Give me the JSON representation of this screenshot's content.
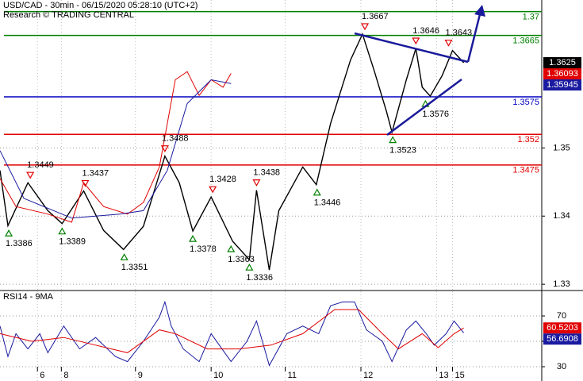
{
  "chart_data": [
    {
      "type": "line",
      "title": "USD/CAD - 30min - 06/15/2020 05:28:10 (UTC+2)",
      "subtitle": "Research © TRADING CENTRAL",
      "xlim": [
        0,
        340
      ],
      "ylim": [
        1.3292,
        1.3717
      ],
      "xticks": [
        {
          "value": 23.5,
          "label": "6"
        },
        {
          "value": 38.5,
          "label": "8"
        },
        {
          "value": 85,
          "label": "9"
        },
        {
          "value": 132.5,
          "label": "10"
        },
        {
          "value": 179,
          "label": "11"
        },
        {
          "value": 226.5,
          "label": "12"
        },
        {
          "value": 274,
          "label": "13"
        },
        {
          "value": 284,
          "label": "15"
        }
      ],
      "yticks": [
        1.33,
        1.34,
        1.35
      ],
      "grid": true,
      "series": [
        {
          "color": "#000000",
          "x": [
            0,
            5,
            17.5,
            30,
            39,
            52.5,
            65,
            77.5,
            90,
            103.5,
            112.5,
            121,
            132.5,
            146,
            156.5,
            161,
            169,
            175,
            190,
            198.5,
            207.5,
            220,
            227.5,
            235,
            242.5,
            246,
            255,
            261,
            265,
            270,
            277.5,
            284,
            291
          ],
          "values": [
            1.3467,
            1.3386,
            1.3449,
            1.3408,
            1.3389,
            1.3437,
            1.3379,
            1.3351,
            1.3385,
            1.3488,
            1.3449,
            1.3378,
            1.3428,
            1.3363,
            1.3336,
            1.3438,
            1.3321,
            1.3408,
            1.3472,
            1.3446,
            1.3536,
            1.3629,
            1.3667,
            1.3612,
            1.3554,
            1.3523,
            1.36,
            1.3646,
            1.3589,
            1.3576,
            1.3606,
            1.3643,
            1.3625
          ]
        },
        {
          "color": "#e00000",
          "x": [
            0,
            10,
            30,
            45,
            52.5,
            65,
            80,
            90,
            100,
            110,
            117.5,
            125,
            132.5,
            140,
            145
          ],
          "values": [
            1.3455,
            1.3414,
            1.3403,
            1.3391,
            1.3449,
            1.3414,
            1.3403,
            1.342,
            1.3472,
            1.36,
            1.3612,
            1.3577,
            1.36,
            1.3589,
            1.36093
          ]
        },
        {
          "color": "#1a1aa0",
          "x": [
            0,
            15,
            45,
            75,
            90,
            105,
            117.5,
            132.5,
            145
          ],
          "values": [
            1.3496,
            1.3426,
            1.3397,
            1.3403,
            1.3408,
            1.3467,
            1.3565,
            1.36,
            1.35945
          ]
        }
      ],
      "levels": [
        {
          "value": 1.37,
          "color": "#008000"
        },
        {
          "value": 1.3665,
          "color": "#008000"
        },
        {
          "value": 1.3575,
          "color": "#0000c0"
        },
        {
          "value": 1.352,
          "color": "#e00000"
        },
        {
          "value": 1.3475,
          "color": "#e00000"
        }
      ],
      "annotations": [
        {
          "x": 19,
          "value": 1.3449,
          "kind": "high"
        },
        {
          "x": 53.5,
          "value": 1.3437,
          "kind": "high"
        },
        {
          "x": 103.5,
          "value": 1.3488,
          "kind": "high"
        },
        {
          "x": 133.5,
          "value": 1.3428,
          "kind": "high"
        },
        {
          "x": 161,
          "value": 1.3438,
          "kind": "high"
        },
        {
          "x": 229,
          "value": 1.3667,
          "kind": "high"
        },
        {
          "x": 261,
          "value": 1.3646,
          "kind": "high"
        },
        {
          "x": 281.5,
          "value": 1.3643,
          "kind": "high"
        },
        {
          "x": 5.5,
          "value": 1.3386,
          "kind": "low"
        },
        {
          "x": 39,
          "value": 1.3389,
          "kind": "low"
        },
        {
          "x": 78,
          "value": 1.3351,
          "kind": "low"
        },
        {
          "x": 121,
          "value": 1.3378,
          "kind": "low"
        },
        {
          "x": 145,
          "value": 1.3363,
          "kind": "low"
        },
        {
          "x": 156.5,
          "value": 1.3336,
          "kind": "low"
        },
        {
          "x": 199,
          "value": 1.3446,
          "kind": "low"
        },
        {
          "x": 246.5,
          "value": 1.3523,
          "kind": "low"
        },
        {
          "x": 267,
          "value": 1.3576,
          "kind": "low"
        }
      ],
      "last_values": [
        {
          "value": 1.3625,
          "color": "#000000"
        },
        {
          "value": 1.36093,
          "color": "#e00000"
        },
        {
          "value": 1.35945,
          "color": "#1a1aa0"
        }
      ]
    },
    {
      "type": "line",
      "title": "RSI14 - 9MA",
      "xlim": [
        0,
        340
      ],
      "ylim": [
        18.75,
        89.4
      ],
      "yticks": [
        30,
        50,
        70
      ],
      "grid": true,
      "series": [
        {
          "color": "#1a1aa0",
          "x": [
            0,
            5,
            10,
            17.5,
            25,
            30,
            40,
            50,
            60,
            72.5,
            80,
            90,
            100,
            103.5,
            107.5,
            115,
            125,
            132.5,
            145,
            155,
            161,
            169,
            180,
            190,
            200,
            207.5,
            215,
            222.5,
            230,
            240,
            246,
            255,
            261,
            267.5,
            272.5,
            280,
            285,
            291
          ],
          "values": [
            62,
            38,
            56,
            44,
            56,
            41,
            62,
            44,
            53,
            38,
            34,
            50,
            69,
            81,
            62,
            44,
            34,
            56,
            34,
            50,
            66,
            31,
            56,
            62,
            56,
            78,
            81,
            81,
            59,
            50,
            34,
            59,
            66,
            56,
            47,
            56,
            66,
            56.6908
          ]
        },
        {
          "color": "#e00000",
          "x": [
            0,
            20,
            40,
            60,
            80,
            100,
            110,
            130,
            150,
            170,
            190,
            210,
            225,
            240,
            250,
            265,
            275,
            285,
            291
          ],
          "values": [
            56,
            50,
            53,
            47,
            41,
            59,
            56,
            44,
            44,
            47,
            56,
            75,
            75,
            56,
            44,
            56,
            45,
            56,
            60.5203
          ]
        }
      ],
      "last_values": [
        {
          "value": 60.5203,
          "color": "#e00000"
        },
        {
          "value": 56.6908,
          "color": "#1a1aa0"
        }
      ]
    }
  ]
}
